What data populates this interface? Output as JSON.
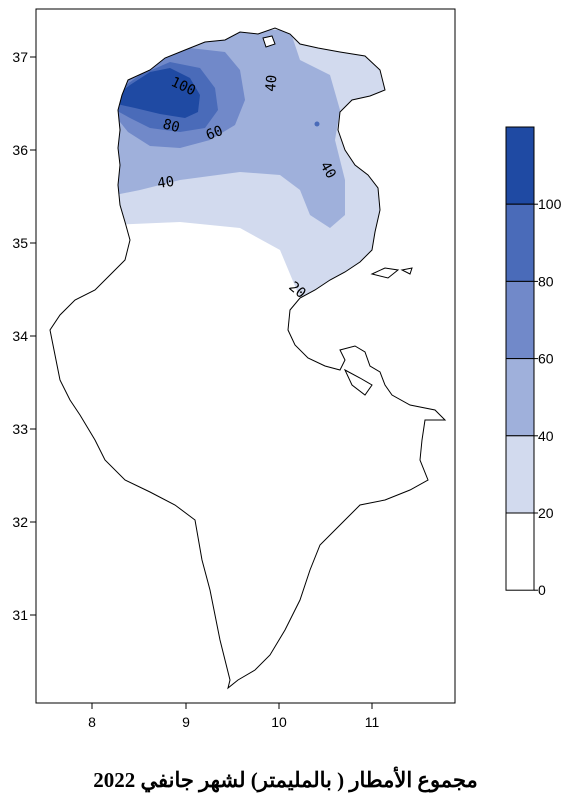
{
  "caption": "مجموع الأمطار ( بالمليمتر)  لشهر جانفي 2022",
  "map": {
    "x_axis": {
      "ticks": [
        "8",
        "9",
        "10",
        "11"
      ]
    },
    "y_axis": {
      "ticks": [
        "37",
        "36",
        "35",
        "34",
        "33",
        "32",
        "31"
      ]
    },
    "contour_labels": [
      "100",
      "80",
      "60",
      "40",
      "40",
      "40",
      "20"
    ]
  },
  "legend": {
    "labels": [
      "100",
      "80",
      "60",
      "40",
      "20",
      "0"
    ],
    "colors": [
      "#1f4aa3",
      "#4a6bb9",
      "#7189c9",
      "#9fb0db",
      "#d2daee",
      "#ffffff"
    ]
  }
}
